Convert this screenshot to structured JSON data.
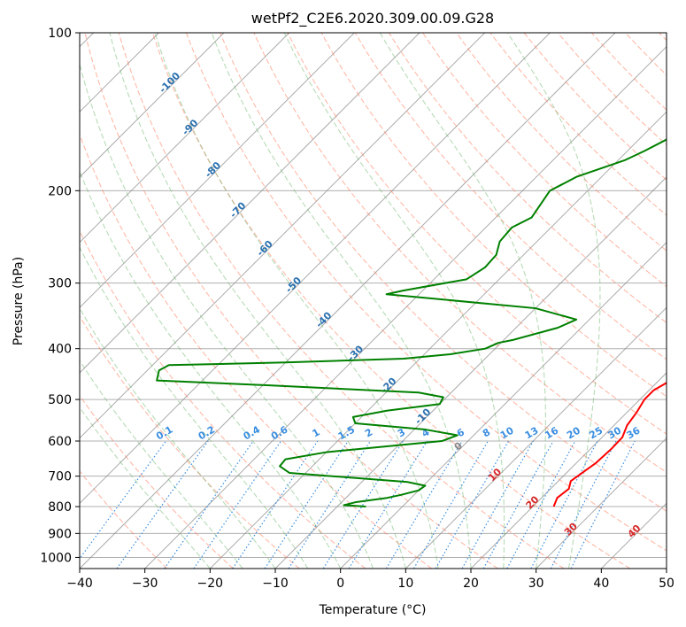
{
  "chart_data": {
    "type": "line",
    "title": "wetPf2_C2E6.2020.309.00.09.G28",
    "xlabel": "Temperature (°C)",
    "ylabel": "Pressure (hPa)",
    "xlim": [
      -40,
      50
    ],
    "ylim": [
      1050,
      100
    ],
    "y_scale": "log",
    "x_ticks": [
      "−40",
      "−30",
      "−20",
      "−10",
      "0",
      "10",
      "20",
      "30",
      "40",
      "50"
    ],
    "x_tick_values": [
      -40,
      -30,
      -20,
      -10,
      0,
      10,
      20,
      30,
      40,
      50
    ],
    "y_ticks": [
      "100",
      "200",
      "300",
      "400",
      "500",
      "600",
      "700",
      "800",
      "900",
      "1000"
    ],
    "y_tick_values": [
      100,
      200,
      300,
      400,
      500,
      600,
      700,
      800,
      900,
      1000
    ],
    "grid": true,
    "skew_degrees": 45,
    "colors": {
      "temperature": "#ff0000",
      "dewpoint": "#008000",
      "dry_adiabat": "#ff8060",
      "moist_adiabat": "#70b870",
      "mixing_ratio": "#3a8ee0",
      "isotherm": "#888888",
      "isobar": "#b0b0b0",
      "neg_isotherm_label": "#2a70b0",
      "pos_isotherm_label": "#d62728",
      "zero_label": "#888888"
    },
    "series": [
      {
        "role": "temperature",
        "points": [
          [
            23.2,
            800
          ],
          [
            22.4,
            770
          ],
          [
            22.8,
            740
          ],
          [
            21.9,
            715
          ],
          [
            22.4,
            690
          ],
          [
            23.0,
            660
          ],
          [
            23.2,
            620
          ],
          [
            23.1,
            590
          ],
          [
            22.0,
            560
          ],
          [
            21.5,
            530
          ],
          [
            20.7,
            500
          ],
          [
            20.7,
            480
          ],
          [
            21.8,
            460
          ],
          [
            21.6,
            440
          ],
          [
            19.5,
            420
          ],
          [
            17.5,
            400
          ],
          [
            15.2,
            370
          ],
          [
            13.3,
            345
          ],
          [
            11.8,
            320
          ],
          [
            10.0,
            300
          ],
          [
            7.7,
            280
          ],
          [
            6.0,
            265
          ],
          [
            4.5,
            250
          ],
          [
            2.5,
            230
          ],
          [
            1.0,
            210
          ],
          [
            -0.2,
            195
          ],
          [
            -1.2,
            180
          ],
          [
            -2.6,
            165
          ],
          [
            -2.8,
            155
          ],
          [
            -1.3,
            148
          ],
          [
            0.1,
            142
          ],
          [
            0.3,
            136
          ],
          [
            -0.2,
            130
          ],
          [
            -0.5,
            124
          ],
          [
            0.2,
            118
          ],
          [
            0.7,
            113
          ],
          [
            1.0,
            108
          ],
          [
            1.2,
            104
          ],
          [
            1.3,
            100
          ]
        ]
      },
      {
        "role": "dewpoint",
        "points": [
          [
            -5.6,
            800
          ],
          [
            -9.2,
            795
          ],
          [
            -7.9,
            785
          ],
          [
            -3.7,
            770
          ],
          [
            -2.0,
            760
          ],
          [
            0.0,
            745
          ],
          [
            0.3,
            730
          ],
          [
            -3.0,
            718
          ],
          [
            -22.5,
            690
          ],
          [
            -25.0,
            670
          ],
          [
            -25.2,
            650
          ],
          [
            -20.0,
            630
          ],
          [
            -4.0,
            600
          ],
          [
            -2.5,
            585
          ],
          [
            -8.5,
            570
          ],
          [
            -20.0,
            555
          ],
          [
            -21.3,
            540
          ],
          [
            -17.0,
            525
          ],
          [
            -10.0,
            510
          ],
          [
            -10.5,
            495
          ],
          [
            -15.0,
            485
          ],
          [
            -39.0,
            470
          ],
          [
            -57.0,
            460
          ],
          [
            -58.2,
            440
          ],
          [
            -57.5,
            430
          ],
          [
            -40.0,
            425
          ],
          [
            -22.5,
            418
          ],
          [
            -16.0,
            410
          ],
          [
            -11.5,
            400
          ],
          [
            -10.4,
            390
          ],
          [
            -8.6,
            385
          ],
          [
            -3.6,
            365
          ],
          [
            -2.0,
            352
          ],
          [
            -10.0,
            335
          ],
          [
            -35.0,
            315
          ],
          [
            -33.0,
            310
          ],
          [
            -25.0,
            295
          ],
          [
            -24.0,
            280
          ],
          [
            -24.2,
            265
          ],
          [
            -25.7,
            250
          ],
          [
            -26.0,
            235
          ],
          [
            -24.5,
            225
          ],
          [
            -25.0,
            215
          ],
          [
            -25.8,
            200
          ],
          [
            -23.8,
            188
          ],
          [
            -19.0,
            175
          ],
          [
            -17.4,
            168
          ],
          [
            -15.8,
            160
          ],
          [
            -16.0,
            150
          ],
          [
            -13.5,
            140
          ],
          [
            -10.5,
            130
          ],
          [
            -8.5,
            120
          ],
          [
            -7.5,
            113
          ],
          [
            -5.0,
            106
          ],
          [
            -2.7,
            100
          ]
        ]
      }
    ],
    "isotherm_labels": [
      "-100",
      "-90",
      "-80",
      "-70",
      "-60",
      "-50",
      "-40",
      "-30",
      "-20",
      "-10",
      "0",
      "10",
      "20",
      "30",
      "40"
    ],
    "isotherm_label_values": [
      -100,
      -90,
      -80,
      -70,
      -60,
      -50,
      -40,
      -30,
      -20,
      -10,
      0,
      10,
      20,
      30,
      40
    ],
    "mixing_ratio_labels": [
      "0.1",
      "0.2",
      "0.4",
      "0.6",
      "1",
      "1.5",
      "2",
      "3",
      "4",
      "6",
      "8",
      "10",
      "13",
      "16",
      "20",
      "25",
      "30",
      "36"
    ],
    "mixing_ratio_values": [
      0.1,
      0.2,
      0.4,
      0.6,
      1,
      1.5,
      2,
      3,
      4,
      6,
      8,
      10,
      13,
      16,
      20,
      25,
      30,
      36
    ],
    "dry_adiabat_thetas_c": [
      -30,
      -20,
      -10,
      0,
      10,
      20,
      30,
      40,
      50,
      60,
      70,
      80,
      90,
      100,
      110,
      120,
      130,
      140,
      150,
      160,
      170,
      180,
      190,
      200
    ],
    "moist_adiabat_start_c": [
      -20,
      -15,
      -10,
      -5,
      0,
      5,
      10,
      15,
      20,
      25,
      30,
      35
    ]
  }
}
